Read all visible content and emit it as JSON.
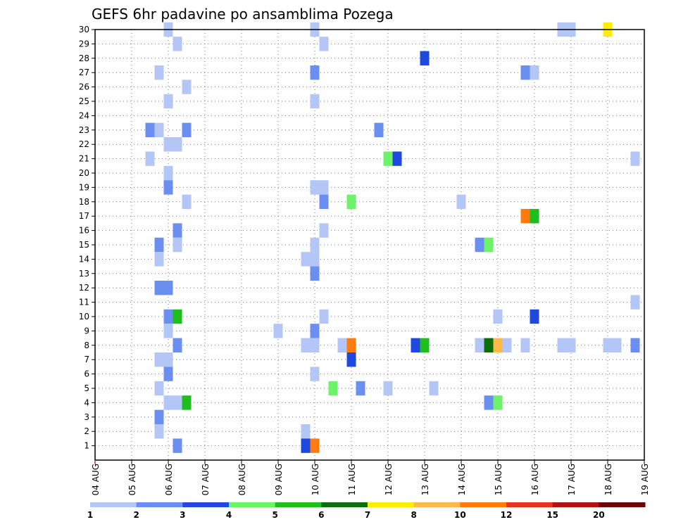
{
  "chart_data": {
    "type": "heatmap",
    "title": "GEFS 6hr padavine po ansamblima Pozega",
    "xlabel": "",
    "ylabel": "",
    "x_ticks": [
      "04 AUG",
      "05 AUG",
      "06 AUG",
      "07 AUG",
      "08 AUG",
      "09 AUG",
      "10 AUG",
      "11 AUG",
      "12 AUG",
      "13 AUG",
      "14 AUG",
      "15 AUG",
      "16 AUG",
      "17 AUG",
      "18 AUG",
      "19 AUG"
    ],
    "x_range_days": [
      0,
      15
    ],
    "y_ticks": [
      1,
      2,
      3,
      4,
      5,
      6,
      7,
      8,
      9,
      10,
      11,
      12,
      13,
      14,
      15,
      16,
      17,
      18,
      19,
      20,
      21,
      22,
      23,
      24,
      25,
      26,
      27,
      28,
      29,
      30
    ],
    "y_range": [
      0,
      30
    ],
    "grid": true,
    "legend_placement": "bottom",
    "levels": [
      "1",
      "2",
      "3",
      "4",
      "5",
      "6",
      "7",
      "8",
      "10",
      "12",
      "15",
      "20"
    ],
    "colors": [
      "#b3c6f5",
      "#6b8ff0",
      "#1f48dc",
      "#6ef26a",
      "#1fbe1f",
      "#0a6e0a",
      "#ffee00",
      "#ffb84d",
      "#ff7a0f",
      "#e8341a",
      "#b0140f",
      "#6a0505"
    ],
    "cells": [
      {
        "ens": 30,
        "day": 2.0,
        "v": 1
      },
      {
        "ens": 30,
        "day": 6.0,
        "v": 1
      },
      {
        "ens": 30,
        "day": 12.75,
        "v": 1
      },
      {
        "ens": 30,
        "day": 13.0,
        "v": 1
      },
      {
        "ens": 30,
        "day": 14.0,
        "v": 7
      },
      {
        "ens": 29,
        "day": 2.25,
        "v": 1
      },
      {
        "ens": 29,
        "day": 6.25,
        "v": 1
      },
      {
        "ens": 28,
        "day": 9.0,
        "v": 3
      },
      {
        "ens": 27,
        "day": 1.75,
        "v": 1
      },
      {
        "ens": 27,
        "day": 6.0,
        "v": 2
      },
      {
        "ens": 27,
        "day": 11.75,
        "v": 2
      },
      {
        "ens": 27,
        "day": 12.0,
        "v": 1
      },
      {
        "ens": 26,
        "day": 2.5,
        "v": 1
      },
      {
        "ens": 25,
        "day": 2.0,
        "v": 1
      },
      {
        "ens": 25,
        "day": 6.0,
        "v": 1
      },
      {
        "ens": 23,
        "day": 1.5,
        "v": 2
      },
      {
        "ens": 23,
        "day": 1.75,
        "v": 1
      },
      {
        "ens": 23,
        "day": 2.5,
        "v": 2
      },
      {
        "ens": 23,
        "day": 7.75,
        "v": 2
      },
      {
        "ens": 22,
        "day": 2.0,
        "v": 1
      },
      {
        "ens": 22,
        "day": 2.25,
        "v": 1
      },
      {
        "ens": 21,
        "day": 1.5,
        "v": 1
      },
      {
        "ens": 21,
        "day": 8.0,
        "v": 4
      },
      {
        "ens": 21,
        "day": 8.25,
        "v": 3
      },
      {
        "ens": 21,
        "day": 14.75,
        "v": 1
      },
      {
        "ens": 20,
        "day": 2.0,
        "v": 1
      },
      {
        "ens": 19,
        "day": 2.0,
        "v": 2
      },
      {
        "ens": 19,
        "day": 6.0,
        "v": 1
      },
      {
        "ens": 19,
        "day": 6.25,
        "v": 1
      },
      {
        "ens": 18,
        "day": 2.5,
        "v": 1
      },
      {
        "ens": 18,
        "day": 6.25,
        "v": 2
      },
      {
        "ens": 18,
        "day": 7.0,
        "v": 4
      },
      {
        "ens": 18,
        "day": 10.0,
        "v": 1
      },
      {
        "ens": 17,
        "day": 11.75,
        "v": 9
      },
      {
        "ens": 17,
        "day": 12.0,
        "v": 5
      },
      {
        "ens": 16,
        "day": 2.25,
        "v": 2
      },
      {
        "ens": 16,
        "day": 6.25,
        "v": 1
      },
      {
        "ens": 15,
        "day": 1.75,
        "v": 2
      },
      {
        "ens": 15,
        "day": 2.25,
        "v": 1
      },
      {
        "ens": 15,
        "day": 6.0,
        "v": 1
      },
      {
        "ens": 15,
        "day": 10.5,
        "v": 2
      },
      {
        "ens": 15,
        "day": 10.75,
        "v": 4
      },
      {
        "ens": 14,
        "day": 1.75,
        "v": 1
      },
      {
        "ens": 14,
        "day": 5.75,
        "v": 1
      },
      {
        "ens": 14,
        "day": 6.0,
        "v": 1
      },
      {
        "ens": 13,
        "day": 6.0,
        "v": 2
      },
      {
        "ens": 12,
        "day": 1.75,
        "v": 2
      },
      {
        "ens": 12,
        "day": 2.0,
        "v": 2
      },
      {
        "ens": 11,
        "day": 14.75,
        "v": 1
      },
      {
        "ens": 10,
        "day": 2.0,
        "v": 2
      },
      {
        "ens": 10,
        "day": 2.25,
        "v": 5
      },
      {
        "ens": 10,
        "day": 6.25,
        "v": 1
      },
      {
        "ens": 10,
        "day": 11.0,
        "v": 1
      },
      {
        "ens": 10,
        "day": 12.0,
        "v": 3
      },
      {
        "ens": 9,
        "day": 2.0,
        "v": 1
      },
      {
        "ens": 9,
        "day": 5.0,
        "v": 1
      },
      {
        "ens": 9,
        "day": 6.0,
        "v": 2
      },
      {
        "ens": 8,
        "day": 2.25,
        "v": 2
      },
      {
        "ens": 8,
        "day": 5.75,
        "v": 1
      },
      {
        "ens": 8,
        "day": 6.0,
        "v": 1
      },
      {
        "ens": 8,
        "day": 6.75,
        "v": 1
      },
      {
        "ens": 8,
        "day": 7.0,
        "v": 9
      },
      {
        "ens": 8,
        "day": 8.75,
        "v": 3
      },
      {
        "ens": 8,
        "day": 9.0,
        "v": 5
      },
      {
        "ens": 8,
        "day": 10.5,
        "v": 1
      },
      {
        "ens": 8,
        "day": 10.75,
        "v": 6
      },
      {
        "ens": 8,
        "day": 11.0,
        "v": 8
      },
      {
        "ens": 8,
        "day": 11.25,
        "v": 1
      },
      {
        "ens": 8,
        "day": 11.75,
        "v": 1
      },
      {
        "ens": 8,
        "day": 12.75,
        "v": 1
      },
      {
        "ens": 8,
        "day": 13.0,
        "v": 1
      },
      {
        "ens": 8,
        "day": 14.0,
        "v": 1
      },
      {
        "ens": 8,
        "day": 14.25,
        "v": 1
      },
      {
        "ens": 8,
        "day": 14.75,
        "v": 2
      },
      {
        "ens": 7,
        "day": 1.75,
        "v": 1
      },
      {
        "ens": 7,
        "day": 2.0,
        "v": 1
      },
      {
        "ens": 7,
        "day": 7.0,
        "v": 3
      },
      {
        "ens": 6,
        "day": 2.0,
        "v": 2
      },
      {
        "ens": 6,
        "day": 6.0,
        "v": 1
      },
      {
        "ens": 5,
        "day": 1.75,
        "v": 1
      },
      {
        "ens": 5,
        "day": 6.5,
        "v": 4
      },
      {
        "ens": 5,
        "day": 7.25,
        "v": 2
      },
      {
        "ens": 5,
        "day": 8.0,
        "v": 1
      },
      {
        "ens": 5,
        "day": 9.25,
        "v": 1
      },
      {
        "ens": 4,
        "day": 2.0,
        "v": 1
      },
      {
        "ens": 4,
        "day": 2.25,
        "v": 1
      },
      {
        "ens": 4,
        "day": 2.5,
        "v": 5
      },
      {
        "ens": 4,
        "day": 10.75,
        "v": 2
      },
      {
        "ens": 4,
        "day": 11.0,
        "v": 4
      },
      {
        "ens": 3,
        "day": 1.75,
        "v": 2
      },
      {
        "ens": 2,
        "day": 1.75,
        "v": 1
      },
      {
        "ens": 2,
        "day": 5.75,
        "v": 1
      },
      {
        "ens": 1,
        "day": 2.25,
        "v": 2
      },
      {
        "ens": 1,
        "day": 5.75,
        "v": 3
      },
      {
        "ens": 1,
        "day": 6.0,
        "v": 9
      }
    ]
  }
}
